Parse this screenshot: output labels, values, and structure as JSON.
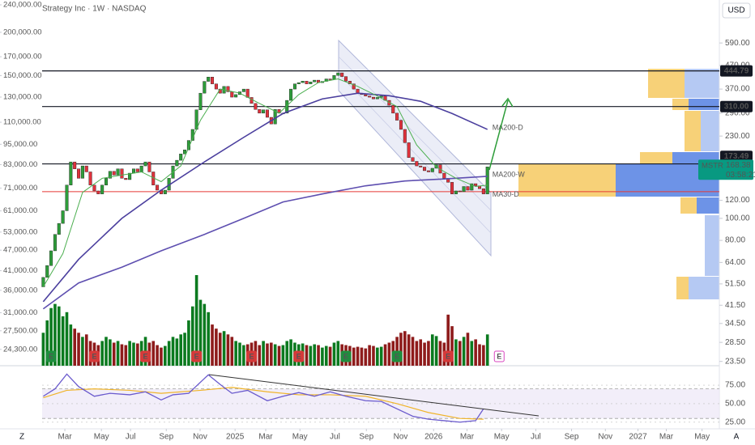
{
  "chart_data": {
    "type": "candlestick",
    "title": "Strategy Inc · 1W · NASDAQ",
    "currency": "USD",
    "scale_buttons": {
      "left": "Z",
      "right": "A"
    },
    "log_scale": true,
    "xlim": [
      -11,
      172
    ],
    "xticks": [
      {
        "value": 5.5,
        "label": "Mar"
      },
      {
        "value": 14.8,
        "label": "May"
      },
      {
        "value": 22.2,
        "label": "Jul"
      },
      {
        "value": 31.3,
        "label": "Sep"
      },
      {
        "value": 39.9,
        "label": "Nov"
      },
      {
        "value": 48.8,
        "label": "2025"
      },
      {
        "value": 56.6,
        "label": "Mar"
      },
      {
        "value": 65.3,
        "label": "May"
      },
      {
        "value": 74.2,
        "label": "Jul"
      },
      {
        "value": 82.2,
        "label": "Sep"
      },
      {
        "value": 90.9,
        "label": "Nov"
      },
      {
        "value": 99.3,
        "label": "2026"
      },
      {
        "value": 107.8,
        "label": "Mar"
      },
      {
        "value": 116.6,
        "label": "May"
      },
      {
        "value": 125.3,
        "label": "Jul"
      },
      {
        "value": 134.4,
        "label": "Sep"
      },
      {
        "value": 143,
        "label": "Nov"
      },
      {
        "value": 151.3,
        "label": "2027"
      },
      {
        "value": 158.5,
        "label": "Mar"
      },
      {
        "value": 167.6,
        "label": "May"
      }
    ],
    "ylim": [
      22.5,
      875
    ],
    "yticks": [
      {
        "value": 590,
        "label": "590.00"
      },
      {
        "value": 470,
        "label": "470.00"
      },
      {
        "value": 370,
        "label": "370.00"
      },
      {
        "value": 290,
        "label": "290.00"
      },
      {
        "value": 230,
        "label": "230.00"
      },
      {
        "value": 120,
        "label": "120.00"
      },
      {
        "value": 100,
        "label": "100.00"
      },
      {
        "value": 80,
        "label": "80.00"
      },
      {
        "value": 64,
        "label": "64.00"
      },
      {
        "value": 51.5,
        "label": "51.50"
      },
      {
        "value": 41.5,
        "label": "41.50"
      },
      {
        "value": 34.5,
        "label": "34.50"
      },
      {
        "value": 28.5,
        "label": "28.50"
      },
      {
        "value": 23.5,
        "label": "23.50"
      }
    ],
    "y2lim": [
      21800,
      241300
    ],
    "y2ticks": [
      {
        "value": 240000,
        "label": "240,000.00"
      },
      {
        "value": 200000,
        "label": "200,000.00"
      },
      {
        "value": 170000,
        "label": "170,000.00"
      },
      {
        "value": 150000,
        "label": "150,000.00"
      },
      {
        "value": 130000,
        "label": "130,000.00"
      },
      {
        "value": 110000,
        "label": "110,000.00"
      },
      {
        "value": 95000,
        "label": "95,000.00"
      },
      {
        "value": 83000,
        "label": "83,000.00"
      },
      {
        "value": 71000,
        "label": "71,000.00"
      },
      {
        "value": 61000,
        "label": "61,000.00"
      },
      {
        "value": 53000,
        "label": "53,000.00"
      },
      {
        "value": 47000,
        "label": "47,000.00"
      },
      {
        "value": 41000,
        "label": "41,000.00"
      },
      {
        "value": 36000,
        "label": "36,000.00"
      },
      {
        "value": 31000,
        "label": "31,000.00"
      },
      {
        "value": 27500,
        "label": "27,500.00"
      },
      {
        "value": 24300,
        "label": "24,300.00"
      }
    ],
    "up_color": "#2e9d3a",
    "down_color": "#e0323c",
    "volume_up_color": "#0b7a1f",
    "volume_down_color": "#8e1b1b",
    "candles": {
      "open": [
        50,
        55,
        62,
        72,
        85,
        95,
        108,
        140,
        177,
        165,
        150,
        170,
        160,
        140,
        132,
        128,
        140,
        150,
        161,
        155,
        165,
        150,
        148,
        158,
        165,
        160,
        170,
        177,
        160,
        140,
        133,
        128,
        133,
        150,
        170,
        180,
        192,
        200,
        220,
        246,
        300,
        355,
        400,
        418,
        390,
        370,
        355,
        380,
        360,
        341,
        350,
        360,
        370,
        340,
        320,
        301,
        290,
        300,
        278,
        260,
        301,
        290,
        290,
        330,
        370,
        390,
        395,
        401,
        390,
        398,
        405,
        395,
        400,
        410,
        408,
        425,
        436,
        420,
        401,
        390,
        370,
        355,
        350,
        345,
        341,
        335,
        340,
        345,
        330,
        314,
        290,
        270,
        246,
        215,
        185,
        178,
        170,
        168,
        162,
        160,
        166,
        172,
        158,
        150,
        144,
        128,
        132,
        131,
        138,
        133,
        142,
        139,
        135,
        128
      ],
      "close": [
        55,
        62,
        72,
        85,
        95,
        108,
        140,
        177,
        165,
        150,
        170,
        160,
        140,
        132,
        128,
        140,
        150,
        161,
        155,
        165,
        150,
        148,
        158,
        165,
        160,
        170,
        177,
        160,
        140,
        133,
        128,
        133,
        150,
        170,
        180,
        192,
        200,
        220,
        246,
        300,
        355,
        400,
        418,
        390,
        370,
        355,
        380,
        360,
        341,
        350,
        360,
        370,
        340,
        320,
        301,
        290,
        300,
        278,
        260,
        301,
        290,
        290,
        330,
        370,
        390,
        395,
        401,
        390,
        398,
        405,
        395,
        400,
        410,
        408,
        425,
        436,
        420,
        401,
        390,
        370,
        355,
        350,
        345,
        341,
        335,
        340,
        345,
        330,
        314,
        290,
        270,
        246,
        215,
        185,
        178,
        170,
        168,
        162,
        160,
        166,
        172,
        158,
        150,
        144,
        128,
        132,
        131,
        138,
        133,
        142,
        139,
        135,
        128,
        168.38
      ],
      "volume": [
        40,
        55,
        70,
        75,
        72,
        60,
        65,
        50,
        45,
        40,
        35,
        38,
        30,
        28,
        25,
        30,
        35,
        32,
        28,
        30,
        26,
        25,
        30,
        28,
        27,
        30,
        35,
        28,
        30,
        25,
        22,
        24,
        30,
        35,
        33,
        38,
        40,
        55,
        72,
        110,
        80,
        75,
        65,
        50,
        45,
        40,
        42,
        38,
        35,
        30,
        28,
        25,
        26,
        28,
        30,
        25,
        30,
        27,
        28,
        26,
        24,
        25,
        30,
        32,
        28,
        26,
        27,
        25,
        24,
        26,
        25,
        22,
        24,
        23,
        28,
        30,
        26,
        25,
        24,
        22,
        23,
        22,
        21,
        25,
        24,
        22,
        23,
        26,
        28,
        30,
        35,
        40,
        42,
        38,
        35,
        30,
        32,
        28,
        30,
        38,
        36,
        30,
        28,
        62,
        48,
        32,
        30,
        35,
        40,
        30,
        32,
        26,
        25,
        38
      ]
    },
    "moving_averages": [
      {
        "name": "MA200-D",
        "color": "#4b3f9e",
        "x": [
          0,
          9,
          20,
          30,
          41,
          51,
          61,
          71,
          80,
          88,
          96,
          104,
          113
        ],
        "values": [
          43,
          66,
          100,
          133,
          177,
          227,
          289,
          335,
          355,
          346,
          327,
          289,
          246
        ]
      },
      {
        "name": "MA200-W",
        "color": "#5e4fb0",
        "x": [
          0,
          9,
          20,
          30,
          41,
          51,
          61,
          71,
          82,
          92,
          102,
          113
        ],
        "values": [
          40,
          52,
          61,
          72,
          85,
          100,
          118,
          128,
          139,
          146,
          149,
          153
        ]
      },
      {
        "name": "MA30-D",
        "color": "#4caf50",
        "x": [
          0,
          5,
          10,
          15,
          20,
          25,
          30,
          35,
          40,
          45,
          50,
          55,
          60,
          65,
          70,
          75,
          80,
          85,
          90,
          95,
          100,
          105,
          110,
          113
        ],
        "values": [
          50,
          70,
          130,
          150,
          155,
          160,
          145,
          170,
          270,
          370,
          355,
          320,
          290,
          350,
          395,
          410,
          380,
          345,
          310,
          210,
          168,
          150,
          138,
          140
        ]
      }
    ],
    "levels": [
      444.79,
      {
        "value": 310,
        "label": "310.00"
      },
      173.49
    ],
    "level_color": "#131722",
    "support": 131,
    "support_color": "#e53935",
    "last_price": {
      "symbol": "MSTR",
      "price": 168.38,
      "countdown": "03:58:21",
      "color": "#089981"
    },
    "earnings": {
      "label": "E",
      "items": [
        {
          "week": 2,
          "color": "#1e8e3e"
        },
        {
          "week": 13,
          "color": "#d63a3a"
        },
        {
          "week": 26,
          "color": "#d63a3a"
        },
        {
          "week": 39,
          "color": "#d63a3a"
        },
        {
          "week": 53,
          "color": "#d63a3a"
        },
        {
          "week": 65,
          "color": "#d63a3a"
        },
        {
          "week": 77,
          "color": "#1e8e3e"
        },
        {
          "week": 90,
          "color": "#1e8e3e"
        },
        {
          "week": 103,
          "color": "#d63a3a"
        },
        {
          "week": 116,
          "color": "#d946c0",
          "outline": true
        }
      ]
    },
    "rsi": {
      "ylim": [
        16,
        98
      ],
      "yticks": [
        {
          "value": 75,
          "label": "75.00"
        },
        {
          "value": 50,
          "label": "50.00"
        },
        {
          "value": 25,
          "label": "25.00"
        }
      ],
      "band": [
        30,
        70
      ],
      "color": "#6a5acd",
      "x": [
        0,
        3,
        6,
        9,
        13,
        17,
        22,
        26,
        30,
        33,
        37,
        42,
        45,
        48,
        52,
        57,
        61,
        65,
        69,
        73,
        77,
        82,
        86,
        90,
        94,
        98,
        102,
        106,
        110,
        112
      ],
      "values": [
        60,
        70,
        90,
        73,
        60,
        64,
        62,
        66,
        55,
        62,
        64,
        89,
        76,
        64,
        68,
        54,
        60,
        65,
        60,
        66,
        60,
        54,
        53,
        43,
        33,
        29,
        27,
        25,
        27,
        43
      ],
      "ma_color": "#f0b429",
      "ma_x": [
        0,
        6,
        13,
        22,
        30,
        40,
        48,
        57,
        65,
        73,
        82,
        90,
        98,
        106,
        112
      ],
      "ma_values": [
        58,
        68,
        70,
        68,
        64,
        68,
        72,
        66,
        62,
        62,
        60,
        50,
        38,
        30,
        29
      ]
    }
  }
}
